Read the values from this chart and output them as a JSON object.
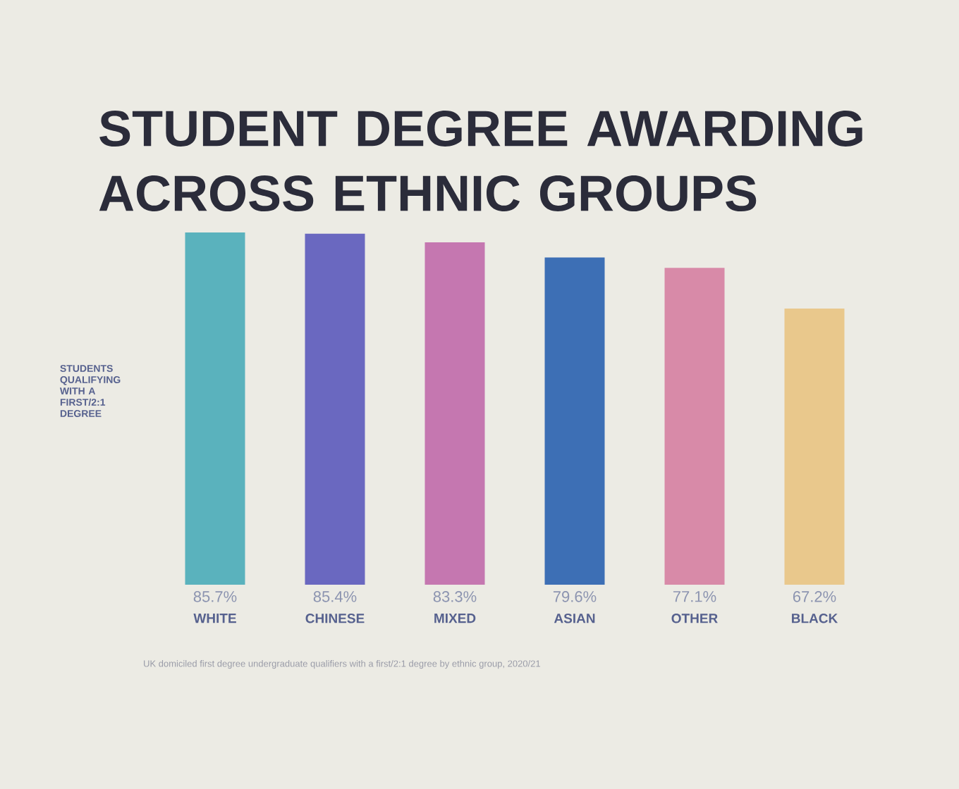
{
  "chart_data": {
    "type": "bar",
    "title": "STUDENT DEGREE AWARDING ACROSS ETHNIC GROUPS",
    "ylabel": "STUDENTS QUALIFYING WITH A FIRST/2:1 DEGREE",
    "categories": [
      "WHITE",
      "CHINESE",
      "MIXED",
      "ASIAN",
      "OTHER",
      "BLACK"
    ],
    "values": [
      85.7,
      85.4,
      83.3,
      79.6,
      77.1,
      67.2
    ],
    "value_labels": [
      "85.7%",
      "85.4%",
      "83.3%",
      "79.6%",
      "77.1%",
      "67.2%"
    ],
    "colors": [
      "#5ab2bd",
      "#6a68c0",
      "#c577b0",
      "#3d6fb5",
      "#d88aa8",
      "#e9c88c"
    ],
    "annotations": [
      "UK domiciled first degree undergraduate qualifiers with a first/2:1 degree by ethnic group, 2020/21"
    ]
  }
}
